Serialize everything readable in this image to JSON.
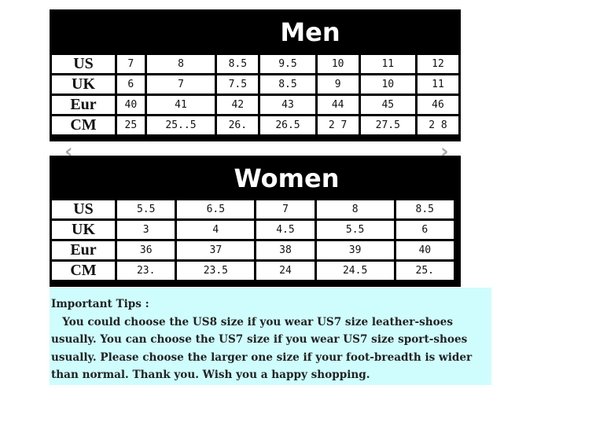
{
  "men": {
    "title": "Men",
    "rows": [
      {
        "label": "US",
        "values": [
          "7",
          "8",
          "8.5",
          "9.5",
          "10",
          "11",
          "12"
        ]
      },
      {
        "label": "UK",
        "values": [
          "6",
          "7",
          "7.5",
          "8.5",
          "9",
          "10",
          "11"
        ]
      },
      {
        "label": "Eur",
        "values": [
          "40",
          "41",
          "42",
          "43",
          "44",
          "45",
          "46"
        ]
      },
      {
        "label": "CM",
        "values": [
          "25",
          "25..5",
          "26.",
          "26.5",
          "2 7",
          "27.5",
          "2 8"
        ]
      }
    ]
  },
  "women": {
    "title": "Women",
    "rows": [
      {
        "label": "US",
        "values": [
          "5.5",
          "6.5",
          "7",
          "8",
          "8.5",
          "",
          ""
        ]
      },
      {
        "label": "UK",
        "values": [
          "3",
          "4",
          "4.5",
          "5.5",
          "6",
          "",
          ""
        ]
      },
      {
        "label": "Eur",
        "values": [
          "36",
          "37",
          "38",
          "39",
          "40",
          "",
          ""
        ]
      },
      {
        "label": "CM",
        "values": [
          "23.",
          "23.5",
          "24",
          "24.5",
          "25.",
          "",
          ""
        ]
      }
    ]
  },
  "carousel": {
    "prev_icon": "chevron-left-icon",
    "next_icon": "chevron-right-icon",
    "prev": "‹",
    "next": "›"
  },
  "tips": {
    "heading": "Important Tips :",
    "lines": [
      "   You could choose the US8 size if you wear US7 size leather-shoes",
      "usually. You can choose the US7 size if you wear US7 size sport-shoes",
      "usually. Please choose the larger one size if your foot-breadth is wider",
      "than normal. Thank you. Wish you a happy shopping."
    ]
  },
  "colors": {
    "tips_bg": "#cffcfc",
    "header_bg": "#000000"
  }
}
